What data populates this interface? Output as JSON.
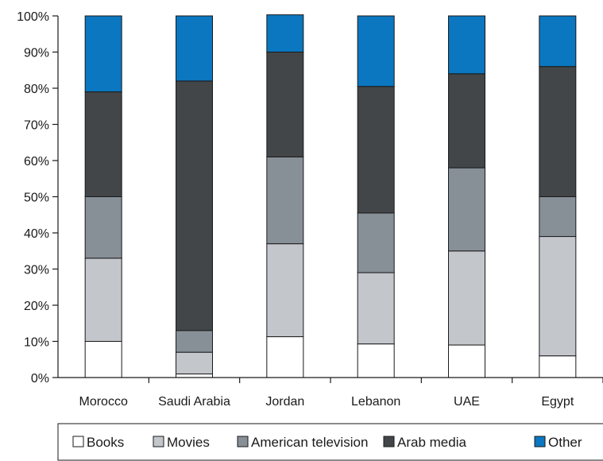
{
  "chart_data": {
    "type": "bar",
    "stacked": true,
    "categories": [
      "Morocco",
      "Saudi Arabia",
      "Jordan",
      "Lebanon",
      "UAE",
      "Egypt"
    ],
    "series": [
      {
        "name": "Books",
        "color": "#ffffff",
        "values": [
          10,
          1,
          11.3,
          9.3,
          9,
          6
        ]
      },
      {
        "name": "Movies",
        "color": "#c3c6cb",
        "values": [
          23,
          6,
          25.7,
          19.7,
          26,
          33
        ]
      },
      {
        "name": "American television",
        "color": "#878f97",
        "values": [
          17,
          6,
          24,
          16.5,
          23,
          11
        ]
      },
      {
        "name": "Arab media",
        "color": "#424648",
        "values": [
          29,
          69,
          29,
          35,
          26,
          36
        ]
      },
      {
        "name": "Other",
        "color": "#0a77c0",
        "values": [
          21,
          18,
          10.3,
          19.5,
          16,
          14
        ]
      }
    ],
    "ylim": [
      0,
      100
    ],
    "yticks": [
      "0%",
      "10%",
      "20%",
      "30%",
      "40%",
      "50%",
      "60%",
      "70%",
      "80%",
      "90%",
      "100%"
    ],
    "ytick_values": [
      0,
      10,
      20,
      30,
      40,
      50,
      60,
      70,
      80,
      90,
      100
    ],
    "title": "",
    "xlabel": "",
    "ylabel": "",
    "legend_position": "bottom",
    "grid": false
  }
}
